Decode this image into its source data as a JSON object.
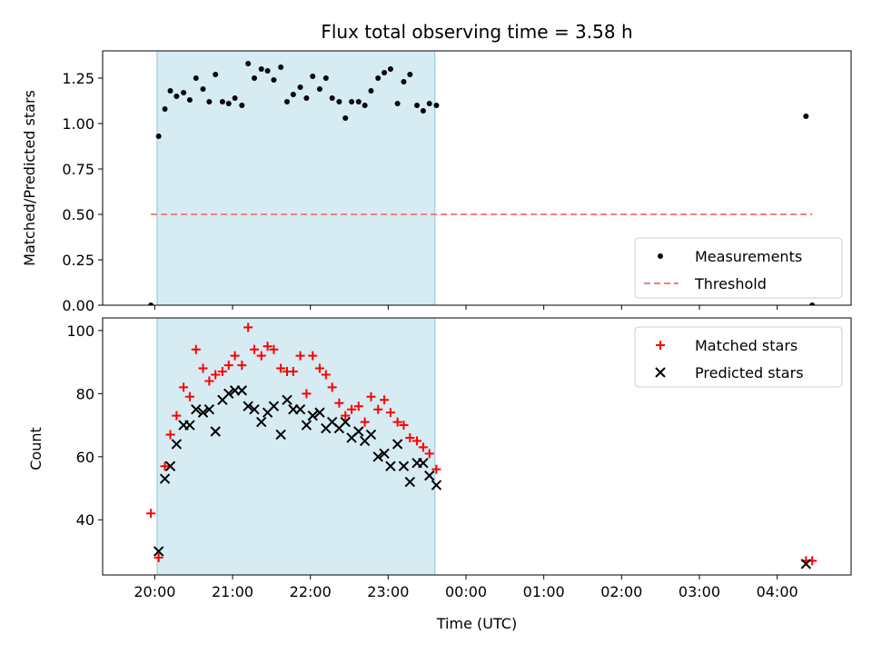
{
  "chart_data": [
    {
      "type": "scatter",
      "title": "Flux total observing time = 3.58 h",
      "xlabel": "",
      "ylabel": "Matched/Predicted stars",
      "xlim": [
        19.33,
        28.95
      ],
      "ylim": [
        0,
        1.4
      ],
      "yticks": [
        0.0,
        0.25,
        0.5,
        0.75,
        1.0,
        1.25
      ],
      "ytick_labels": [
        "0.00",
        "0.25",
        "0.50",
        "0.75",
        "1.00",
        "1.25"
      ],
      "shaded_span": [
        20.03,
        23.6
      ],
      "legend_position": "lower-right",
      "series": [
        {
          "name": "Measurements",
          "marker": "dot",
          "color": "#000000",
          "x": [
            19.95,
            20.05,
            20.13,
            20.2,
            20.28,
            20.37,
            20.45,
            20.53,
            20.62,
            20.7,
            20.78,
            20.87,
            20.95,
            21.03,
            21.12,
            21.2,
            21.28,
            21.37,
            21.45,
            21.53,
            21.62,
            21.7,
            21.78,
            21.87,
            21.95,
            22.03,
            22.12,
            22.2,
            22.28,
            22.37,
            22.45,
            22.53,
            22.62,
            22.7,
            22.78,
            22.87,
            22.95,
            23.03,
            23.12,
            23.2,
            23.28,
            23.37,
            23.45,
            23.53,
            23.62,
            28.37,
            28.45
          ],
          "y": [
            0.0,
            0.93,
            1.08,
            1.18,
            1.15,
            1.17,
            1.13,
            1.25,
            1.19,
            1.12,
            1.27,
            1.12,
            1.11,
            1.14,
            1.1,
            1.33,
            1.25,
            1.3,
            1.29,
            1.24,
            1.31,
            1.12,
            1.16,
            1.2,
            1.14,
            1.26,
            1.19,
            1.25,
            1.14,
            1.12,
            1.03,
            1.12,
            1.12,
            1.1,
            1.18,
            1.25,
            1.28,
            1.3,
            1.11,
            1.23,
            1.27,
            1.1,
            1.07,
            1.11,
            1.1,
            1.04,
            0.0
          ]
        },
        {
          "name": "Threshold",
          "style": "dashed",
          "color": "#f08080",
          "x": [
            19.95,
            28.45
          ],
          "y": [
            0.5,
            0.5
          ]
        }
      ]
    },
    {
      "type": "scatter",
      "title": "",
      "xlabel": "Time (UTC)",
      "ylabel": "Count",
      "xlim": [
        19.33,
        28.95
      ],
      "ylim": [
        22.5,
        104
      ],
      "xticks": [
        20,
        21,
        22,
        23,
        24,
        25,
        26,
        27,
        28
      ],
      "xtick_labels": [
        "20:00",
        "21:00",
        "22:00",
        "23:00",
        "00:00",
        "01:00",
        "02:00",
        "03:00",
        "04:00"
      ],
      "yticks": [
        40,
        60,
        80,
        100
      ],
      "ytick_labels": [
        "40",
        "60",
        "80",
        "100"
      ],
      "shaded_span": [
        20.03,
        23.6
      ],
      "legend_position": "upper-right",
      "series": [
        {
          "name": "Matched stars",
          "marker": "plus",
          "color": "#ff0000",
          "x": [
            19.95,
            20.05,
            20.13,
            20.2,
            20.28,
            20.37,
            20.45,
            20.53,
            20.62,
            20.7,
            20.78,
            20.87,
            20.95,
            21.03,
            21.12,
            21.2,
            21.28,
            21.37,
            21.45,
            21.53,
            21.62,
            21.7,
            21.78,
            21.87,
            21.95,
            22.03,
            22.12,
            22.2,
            22.28,
            22.37,
            22.45,
            22.53,
            22.62,
            22.7,
            22.78,
            22.87,
            22.95,
            23.03,
            23.12,
            23.2,
            23.28,
            23.37,
            23.45,
            23.53,
            23.62,
            28.37,
            28.45
          ],
          "y": [
            42,
            28,
            57,
            67,
            73,
            82,
            79,
            94,
            88,
            84,
            86,
            87,
            89,
            92,
            89,
            101,
            94,
            92,
            95,
            94,
            88,
            87,
            87,
            92,
            80,
            92,
            88,
            86,
            82,
            77,
            73,
            75,
            76,
            71,
            79,
            75,
            78,
            74,
            71,
            70,
            66,
            65,
            63,
            61,
            56,
            27,
            27
          ]
        },
        {
          "name": "Predicted stars",
          "marker": "x",
          "color": "#000000",
          "x": [
            20.05,
            20.13,
            20.2,
            20.28,
            20.37,
            20.45,
            20.53,
            20.62,
            20.7,
            20.78,
            20.87,
            20.95,
            21.03,
            21.12,
            21.2,
            21.28,
            21.37,
            21.45,
            21.53,
            21.62,
            21.7,
            21.78,
            21.87,
            21.95,
            22.03,
            22.12,
            22.2,
            22.28,
            22.37,
            22.45,
            22.53,
            22.62,
            22.7,
            22.78,
            22.87,
            22.95,
            23.03,
            23.12,
            23.2,
            23.28,
            23.37,
            23.45,
            23.53,
            23.62,
            28.37
          ],
          "y": [
            30,
            53,
            57,
            64,
            70,
            70,
            75,
            74,
            75,
            68,
            78,
            80,
            81,
            81,
            76,
            75,
            71,
            74,
            76,
            67,
            78,
            75,
            75,
            70,
            73,
            74,
            69,
            71,
            69,
            71,
            66,
            68,
            65,
            67,
            60,
            61,
            57,
            64,
            57,
            52,
            58,
            58,
            54,
            51,
            26
          ]
        }
      ]
    }
  ]
}
